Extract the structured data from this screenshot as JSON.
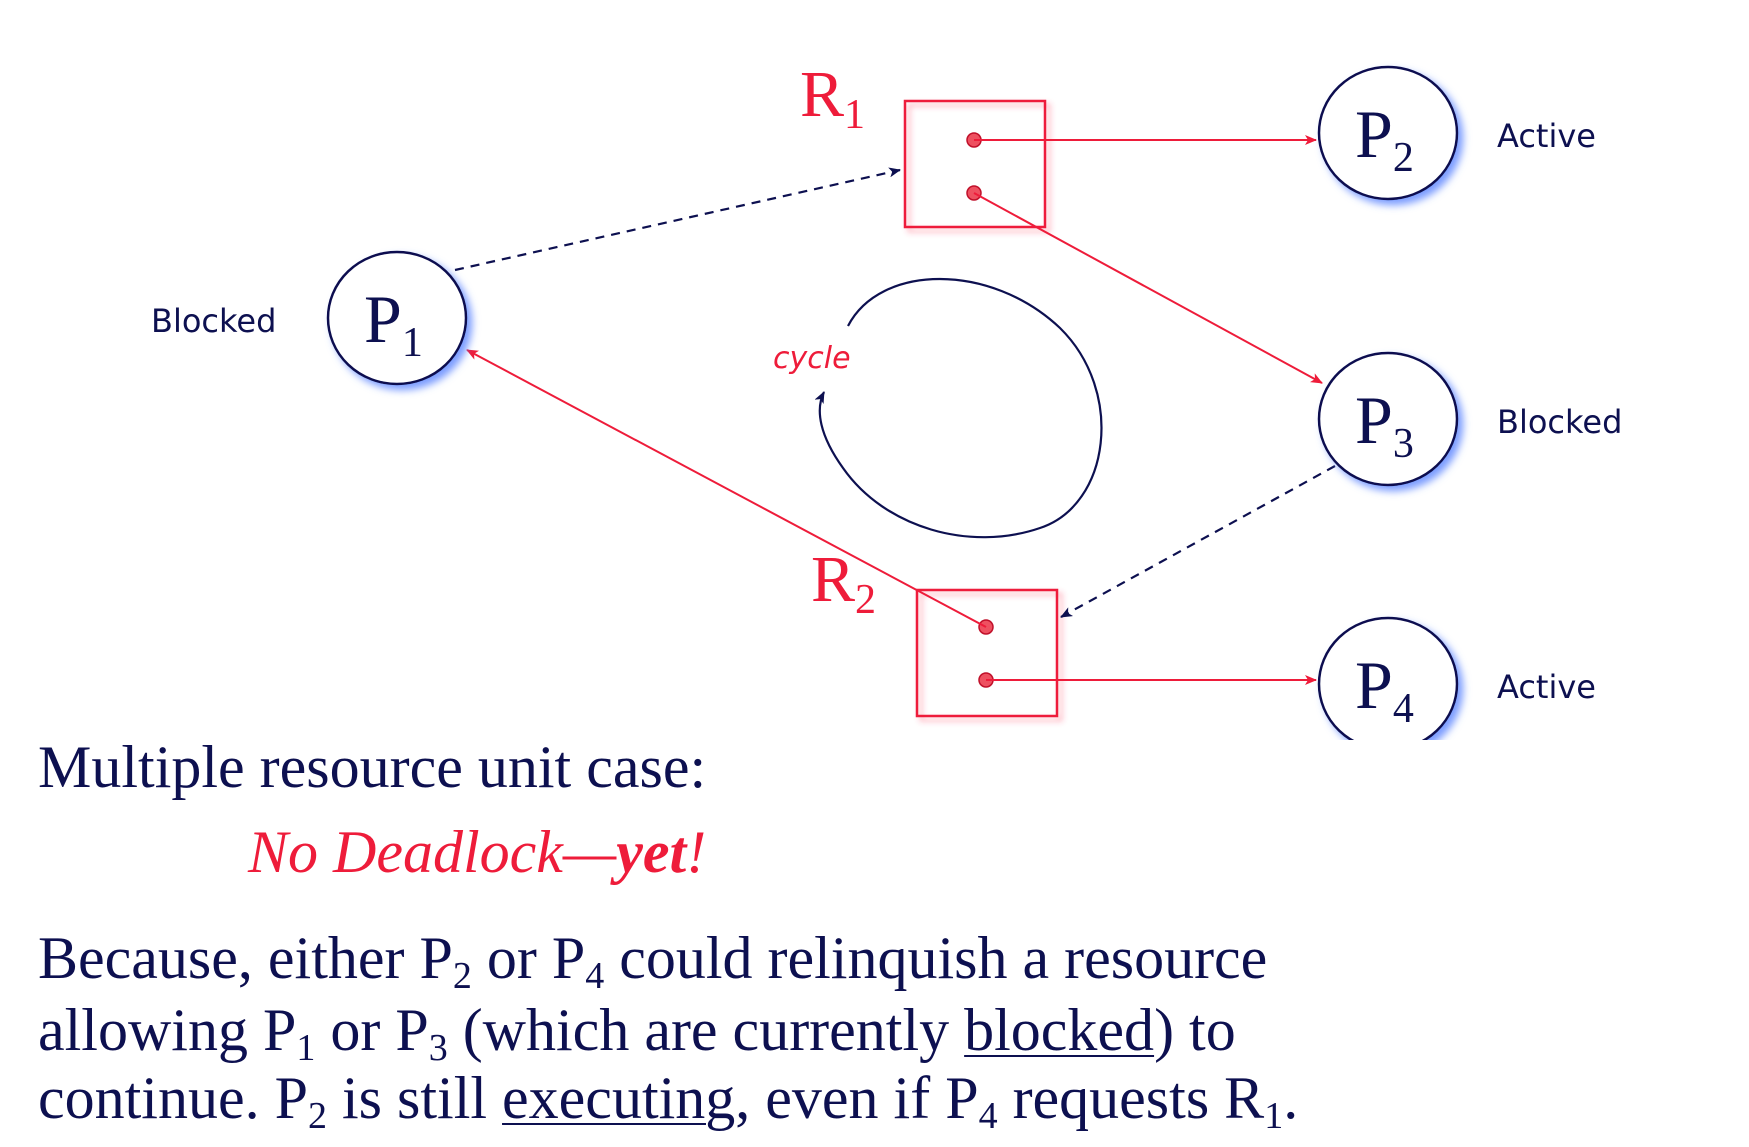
{
  "nodes": {
    "P1": {
      "letter": "P",
      "sub": "1",
      "status": "Blocked"
    },
    "P2": {
      "letter": "P",
      "sub": "2",
      "status": "Active"
    },
    "P3": {
      "letter": "P",
      "sub": "3",
      "status": "Blocked"
    },
    "P4": {
      "letter": "P",
      "sub": "4",
      "status": "Active"
    }
  },
  "resources": {
    "R1": {
      "letter": "R",
      "sub": "1"
    },
    "R2": {
      "letter": "R",
      "sub": "2"
    }
  },
  "cycle_label": "cycle",
  "colors": {
    "navy": "#0d1050",
    "red": "#ee1c3a"
  },
  "heading": "Multiple resource unit case:",
  "verdict": {
    "main": "No Deadlock—",
    "bold": "yet",
    "end": "!"
  },
  "paragraph": {
    "l1": {
      "a": "Because, either P",
      "s1": "2",
      "b": " or P",
      "s2": "4",
      "c": " could relinquish a resource"
    },
    "l2": {
      "a": "allowing P",
      "s1": "1",
      "b": " or P",
      "s2": "3",
      "c": " (which are currently ",
      "u": "blocked",
      "d": ") to"
    },
    "l3": {
      "a": "continue. P",
      "s1": "2",
      "b": " is still ",
      "u": "executing",
      "c": ", even if P",
      "s2": "4",
      "d": " requests R",
      "s3": "1",
      "e": "."
    }
  }
}
